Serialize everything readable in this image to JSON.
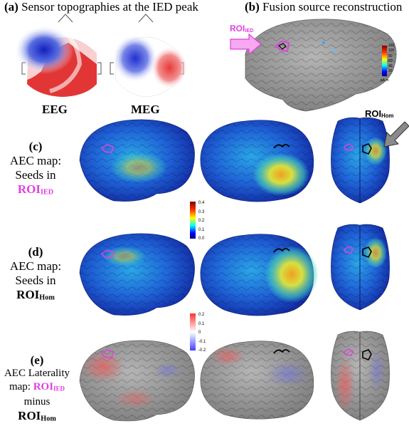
{
  "panel_a": {
    "letter": "(a)",
    "title": "Sensor topographies at the IED peak",
    "eeg_label": "EEG",
    "meg_label": "MEG"
  },
  "panel_b": {
    "letter": "(b)",
    "title": "Fusion source reconstruction",
    "roi_label": "ROI",
    "roi_sub": "IED",
    "colorbar_ticks": [
      "120",
      "100",
      "80",
      "60",
      "40",
      "20"
    ],
    "colorbar_unit": "pA.m"
  },
  "panel_c": {
    "letter": "(c)",
    "line1": "AEC map:",
    "line2": "Seeds in",
    "roi": "ROI",
    "roi_sub": "IED",
    "callout_roi": "ROI",
    "callout_sub": "Hom"
  },
  "colorbar_aec": {
    "ticks": [
      "0.4",
      "0.3",
      "0.2",
      "0.1",
      "0.0"
    ]
  },
  "panel_d": {
    "letter": "(d)",
    "line1": "AEC map:",
    "line2": "Seeds in",
    "roi": "ROI",
    "roi_sub": "Hom"
  },
  "colorbar_lat": {
    "ticks": [
      "0.2",
      "0.1",
      "0",
      "-0.1",
      "-0.2"
    ]
  },
  "panel_e": {
    "letter": "(e)",
    "line1": "AEC Laterality",
    "line2_pre": "map: ",
    "roi1": "ROI",
    "roi1_sub": "IED",
    "line3": "minus",
    "roi2": "ROI",
    "roi2_sub": "Hom"
  },
  "colors": {
    "roi_ied": "#e040e0",
    "jet_blue": "#1f3fb8",
    "lat_red": "#e06a6a",
    "lat_grey": "#8c8c8c"
  }
}
